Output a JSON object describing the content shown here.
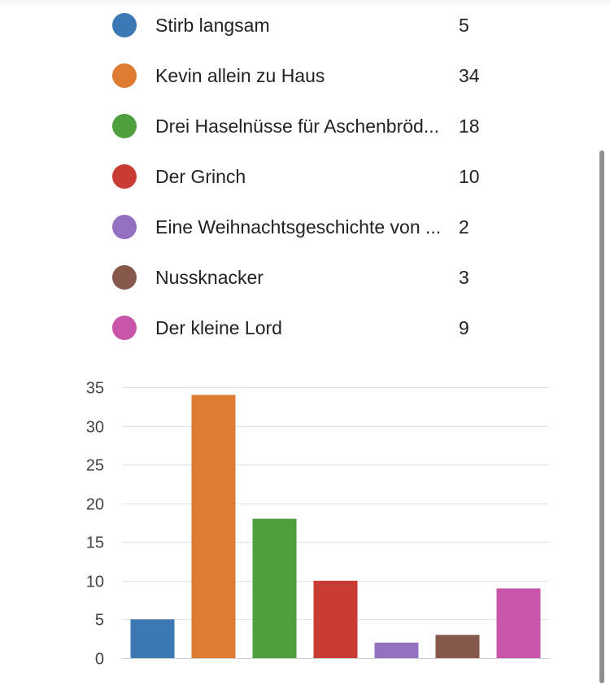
{
  "chart_data": {
    "type": "bar",
    "categories": [
      "Stirb langsam",
      "Kevin allein zu Haus",
      "Drei Haselnüsse für Aschenbröd...",
      "Der Grinch",
      "Eine Weihnachtsgeschichte von ...",
      "Nussknacker",
      "Der kleine Lord"
    ],
    "values": [
      5,
      34,
      18,
      10,
      2,
      3,
      9
    ],
    "colors": [
      "#3b78b4",
      "#de7a31",
      "#4f9f3e",
      "#c93c34",
      "#9470c0",
      "#86574b",
      "#c955a8"
    ],
    "ylim": [
      0,
      35
    ],
    "yticks": [
      0,
      5,
      10,
      15,
      20,
      25,
      30,
      35
    ],
    "grid": true,
    "title": "",
    "xlabel": "",
    "ylabel": "",
    "legend": "top"
  }
}
